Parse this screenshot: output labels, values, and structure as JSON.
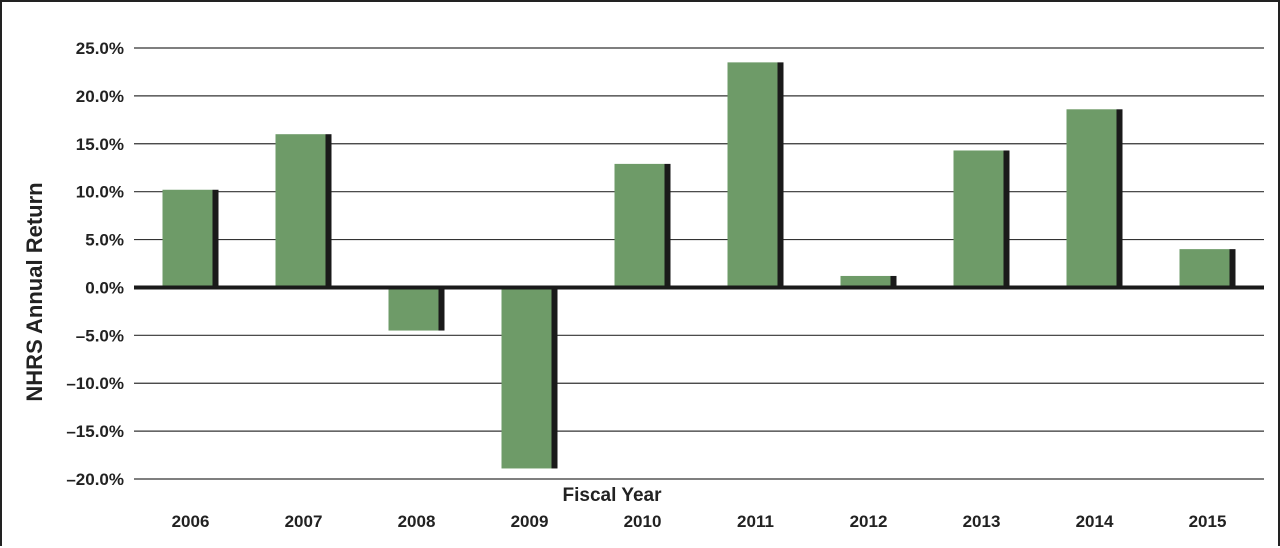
{
  "chart_data": {
    "type": "bar",
    "title": "",
    "xlabel": "Fiscal Year",
    "ylabel": "NHRS Annual Return",
    "categories": [
      "2006",
      "2007",
      "2008",
      "2009",
      "2010",
      "2011",
      "2012",
      "2013",
      "2014",
      "2015"
    ],
    "series": [
      {
        "values": [
          10.2,
          16.0,
          -4.5,
          -18.9,
          12.9,
          23.5,
          1.2,
          14.3,
          18.6,
          4.0
        ]
      }
    ],
    "ylim": [
      -20,
      25
    ],
    "yticks": [
      25,
      20,
      15,
      10,
      5,
      0,
      -5,
      -10,
      -15,
      -20
    ],
    "ytick_labels": [
      "25.0%",
      "20.0%",
      "15.0%",
      "10.0%",
      "5.0%",
      "0.0%",
      "–5.0%",
      "–10.0%",
      "–15.0%",
      "–20.0%"
    ],
    "grid": true,
    "legend": "none",
    "colors": {
      "bar": "#6e9b68",
      "shadow": "#1a1a1a",
      "axis": "#1a1a1a",
      "grid": "#333333",
      "ylabel": "#6e9b68"
    }
  }
}
